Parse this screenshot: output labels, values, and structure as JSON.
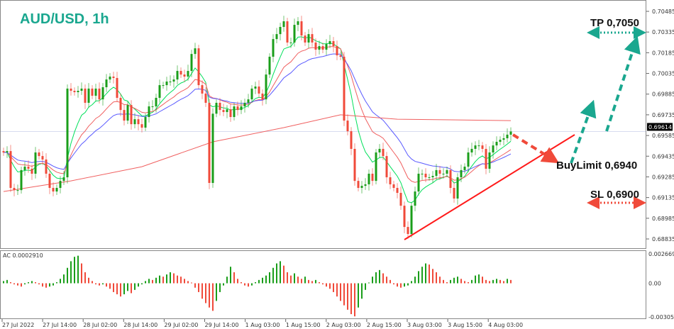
{
  "chart_data": {
    "type": "candlestick",
    "title": "AUD/USD, 1h",
    "title_color": "#1aa78f",
    "price_ticks": [
      "0.70485",
      "0.70335",
      "0.70185",
      "0.70035",
      "0.69885",
      "0.69735",
      "0.69585",
      "0.69435",
      "0.69285",
      "0.69135",
      "0.68985",
      "0.68835"
    ],
    "price_range": [
      0.6881,
      0.7054
    ],
    "current_price": "0.69614",
    "time_labels": [
      "27 Jul 2022",
      "27 Jul 14:00",
      "28 Jul 02:00",
      "28 Jul 14:00",
      "29 Jul 02:00",
      "29 Jul 14:00",
      "1 Aug 03:00",
      "1 Aug 15:00",
      "2 Aug 03:00",
      "2 Aug 15:00",
      "3 Aug 03:00",
      "3 Aug 15:00",
      "4 Aug 03:00"
    ],
    "closes": [
      0.69462,
      0.69472,
      0.69205,
      0.69189,
      0.69189,
      0.69334,
      0.69359,
      0.69344,
      0.69308,
      0.69462,
      0.69436,
      0.69411,
      0.69308,
      0.69205,
      0.69179,
      0.69205,
      0.69256,
      0.69282,
      0.69925,
      0.69909,
      0.69899,
      0.69909,
      0.69925,
      0.69822,
      0.69925,
      0.69873,
      0.69925,
      0.69847,
      0.69935,
      0.69991,
      0.70012,
      0.70002,
      0.69858,
      0.6977,
      0.69693,
      0.69806,
      0.69667,
      0.69703,
      0.69667,
      0.69642,
      0.69719,
      0.69796,
      0.69796,
      0.69858,
      0.6995,
      0.6995,
      0.69976,
      0.69976,
      0.69991,
      0.70053,
      0.70027,
      0.70012,
      0.70053,
      0.70176,
      0.70217,
      0.6995,
      0.69889,
      0.69822,
      0.69241,
      0.69743,
      0.69822,
      0.6977,
      0.69755,
      0.69775,
      0.69719,
      0.69796,
      0.6977,
      0.69796,
      0.69822,
      0.69847,
      0.69925,
      0.6994,
      0.69889,
      0.69847,
      0.70027,
      0.70156,
      0.70284,
      0.7032,
      0.70372,
      0.70413,
      0.70259,
      0.70259,
      0.70387,
      0.70413,
      0.7031,
      0.70259,
      0.7032,
      0.70259,
      0.70207,
      0.70233,
      0.70207,
      0.70248,
      0.70269,
      0.70233,
      0.70166,
      0.70156,
      0.69693,
      0.69616,
      0.69488,
      0.69256,
      0.69205,
      0.6922,
      0.69231,
      0.69308,
      0.69256,
      0.69462,
      0.69488,
      0.69436,
      0.69282,
      0.69231,
      0.69205,
      0.69169,
      0.69076,
      0.68922,
      0.68871,
      0.69076,
      0.69179,
      0.69308,
      0.69308,
      0.69282,
      0.69282,
      0.69292,
      0.69334,
      0.69308,
      0.69308,
      0.69334,
      0.69205,
      0.69128,
      0.69282,
      0.69334,
      0.69359,
      0.69462,
      0.69488,
      0.69513,
      0.69513,
      0.69488,
      0.69344,
      0.69462,
      0.69513,
      0.69539,
      0.69554,
      0.69565,
      0.69591,
      0.69614
    ],
    "ma_slow": [
      [
        0,
        0.69179
      ],
      [
        19,
        0.69256
      ],
      [
        39,
        0.69359
      ],
      [
        59,
        0.69539
      ],
      [
        79,
        0.69642
      ],
      [
        95,
        0.69735
      ],
      [
        111,
        0.69703
      ],
      [
        143,
        0.69693
      ]
    ],
    "ma_colors": {
      "fast": "#00e05a",
      "mid": "#f06060",
      "slow_blue": "#5a5aff",
      "long": "#f06060"
    },
    "up_color": "#1a9e1a",
    "down_color": "#f04a3a",
    "indicator": {
      "label": "AC 0.0002910",
      "ticks": [
        "0.0026692",
        "0.00",
        "-0.0030542"
      ],
      "range": [
        -0.0030542,
        0.0026692
      ],
      "values": [
        0.0002,
        0.0003,
        0.0001,
        -0.0001,
        -0.0002,
        -0.0003,
        -0.0001,
        0.0001,
        0.0002,
        0.0001,
        -0.0001,
        -0.0003,
        -0.0004,
        -0.0003,
        -0.0002,
        0.0001,
        0.0004,
        0.0008,
        0.0014,
        0.002,
        0.0024,
        0.0025,
        0.0018,
        0.001,
        0.0005,
        0.0002,
        -0.0001,
        -0.0002,
        -0.0001,
        -0.0003,
        -0.0005,
        -0.0008,
        -0.001,
        -0.0012,
        -0.001,
        -0.0007,
        -0.0009,
        -0.0006,
        -0.0003,
        -0.0001,
        0.0002,
        0.0004,
        0.0003,
        0.0005,
        0.0007,
        0.0006,
        0.0008,
        0.001,
        0.0009,
        0.0007,
        0.0006,
        0.0004,
        0.0002,
        0.0,
        -0.0004,
        -0.0008,
        -0.0014,
        -0.0018,
        -0.0022,
        -0.0025,
        -0.0016,
        -0.0008,
        -0.0002,
        0.0006,
        0.0015,
        0.001,
        0.0004,
        0.0001,
        -0.0002,
        -0.0003,
        -0.0002,
        0.0001,
        0.0003,
        0.0005,
        0.0007,
        0.001,
        0.0014,
        0.0018,
        0.002,
        0.0016,
        0.001,
        0.0007,
        0.0009,
        0.0006,
        0.0004,
        0.0006,
        0.0003,
        0.0002,
        0.0003,
        0.0001,
        -0.0001,
        -0.0003,
        -0.0005,
        -0.0008,
        -0.0012,
        -0.0016,
        -0.002,
        -0.0024,
        -0.0028,
        -0.003,
        -0.0022,
        -0.0014,
        -0.0006,
        0.0,
        0.0006,
        0.001,
        0.0012,
        0.0009,
        0.0006,
        0.0003,
        -0.0001,
        -0.0003,
        -0.0004,
        -0.0003,
        -0.0002,
        0.0002,
        0.0006,
        0.0011,
        0.0015,
        0.0018,
        0.0017,
        0.0013,
        0.001,
        0.0006,
        0.0003,
        0.0001,
        0.0003,
        0.0005,
        0.0006,
        0.0004,
        0.0002,
        0.0001,
        0.0003,
        0.0007,
        0.0008,
        0.0006,
        0.0003,
        0.0002,
        0.0003,
        0.0004,
        0.0003,
        0.0002,
        0.0004,
        0.0003
      ]
    },
    "annotations": {
      "tp": {
        "label": "TP 0,7050",
        "price": 0.705,
        "color": "#1aa78f"
      },
      "buy_limit": {
        "label": "BuyLimit 0,6940",
        "price": 0.694,
        "color": "#f04a3a"
      },
      "sl": {
        "label": "SL 0,6900",
        "price": 0.69,
        "color": "#f04a3a"
      },
      "trendline_color": "#ff1a1a"
    }
  }
}
